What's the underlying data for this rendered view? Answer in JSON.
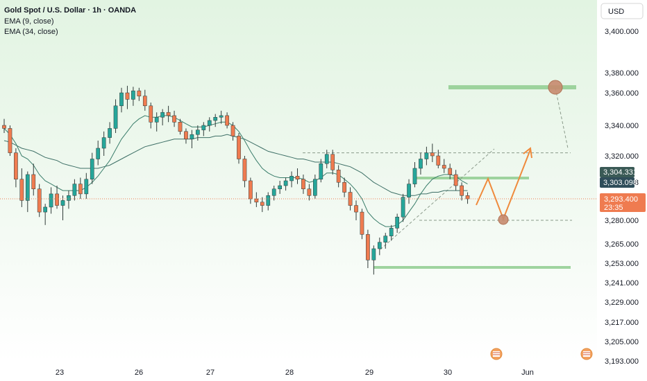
{
  "header": {
    "title": "Gold Spot / U.S. Dollar · 1h · OANDA",
    "indicators": [
      "EMA (9, close)",
      "EMA (34, close)"
    ],
    "currency": "USD"
  },
  "colors": {
    "up": "#26a69a",
    "down": "#ef7b50",
    "ema_fast": "#3a7d6b",
    "ema_slow": "#3d6f66",
    "zone": "#8fcc8f",
    "projection": "#ef8a3c",
    "bg_top": "#e6f6e6",
    "bg_bottom": "#ffffff"
  },
  "chart_data": {
    "type": "candlestick",
    "y_ticks": [
      "3,400.000",
      "3,380.000",
      "3,360.000",
      "3,340.000",
      "3,320.000",
      "3,303.098",
      "3,280.000",
      "3,265.000",
      "3,253.000",
      "3,241.000",
      "3,229.000",
      "3,217.000",
      "3,205.000",
      "3,193.000"
    ],
    "x_ticks": [
      "23",
      "26",
      "27",
      "28",
      "29",
      "30",
      "Jun"
    ],
    "price_badges": [
      {
        "label": "3,304.331",
        "value": 3304.331
      },
      {
        "label": "3,303.098",
        "value": 3303.098
      },
      {
        "label": "3,293.400",
        "value": 3293.4,
        "sub": "23:35"
      }
    ],
    "candles": [
      [
        3340,
        3344,
        3335,
        3338
      ],
      [
        3338,
        3340,
        3320,
        3322
      ],
      [
        3322,
        3325,
        3300,
        3305
      ],
      [
        3305,
        3312,
        3288,
        3292
      ],
      [
        3292,
        3310,
        3285,
        3308
      ],
      [
        3308,
        3315,
        3295,
        3299
      ],
      [
        3299,
        3302,
        3282,
        3285
      ],
      [
        3285,
        3290,
        3277,
        3288
      ],
      [
        3288,
        3300,
        3284,
        3296
      ],
      [
        3296,
        3301,
        3287,
        3289
      ],
      [
        3289,
        3295,
        3280,
        3292
      ],
      [
        3292,
        3298,
        3287,
        3295
      ],
      [
        3295,
        3305,
        3292,
        3302
      ],
      [
        3302,
        3306,
        3293,
        3296
      ],
      [
        3296,
        3309,
        3293,
        3305
      ],
      [
        3305,
        3322,
        3302,
        3318
      ],
      [
        3318,
        3330,
        3314,
        3325
      ],
      [
        3325,
        3336,
        3320,
        3332
      ],
      [
        3332,
        3342,
        3328,
        3338
      ],
      [
        3338,
        3356,
        3335,
        3352
      ],
      [
        3352,
        3365,
        3348,
        3360
      ],
      [
        3360,
        3367,
        3350,
        3356
      ],
      [
        3356,
        3366,
        3352,
        3362
      ],
      [
        3362,
        3365,
        3355,
        3358
      ],
      [
        3358,
        3363,
        3349,
        3352
      ],
      [
        3352,
        3354,
        3338,
        3342
      ],
      [
        3342,
        3348,
        3336,
        3345
      ],
      [
        3345,
        3350,
        3340,
        3348
      ],
      [
        3348,
        3352,
        3342,
        3346
      ],
      [
        3346,
        3349,
        3339,
        3342
      ],
      [
        3342,
        3344,
        3334,
        3336
      ],
      [
        3336,
        3338,
        3328,
        3331
      ],
      [
        3331,
        3337,
        3325,
        3334
      ],
      [
        3334,
        3340,
        3330,
        3337
      ],
      [
        3337,
        3342,
        3333,
        3340
      ],
      [
        3340,
        3345,
        3336,
        3343
      ],
      [
        3343,
        3347,
        3339,
        3345
      ],
      [
        3345,
        3349,
        3341,
        3346
      ],
      [
        3346,
        3348,
        3338,
        3340
      ],
      [
        3340,
        3342,
        3330,
        3333
      ],
      [
        3333,
        3335,
        3315,
        3318
      ],
      [
        3318,
        3320,
        3300,
        3304
      ],
      [
        3304,
        3306,
        3290,
        3293
      ],
      [
        3293,
        3297,
        3288,
        3291
      ],
      [
        3291,
        3294,
        3285,
        3289
      ],
      [
        3289,
        3297,
        3286,
        3295
      ],
      [
        3295,
        3301,
        3292,
        3299
      ],
      [
        3299,
        3304,
        3296,
        3301
      ],
      [
        3301,
        3306,
        3298,
        3304
      ],
      [
        3304,
        3310,
        3300,
        3307
      ],
      [
        3307,
        3312,
        3302,
        3305
      ],
      [
        3305,
        3308,
        3296,
        3299
      ],
      [
        3299,
        3302,
        3292,
        3295
      ],
      [
        3295,
        3308,
        3293,
        3305
      ],
      [
        3305,
        3318,
        3303,
        3315
      ],
      [
        3315,
        3324,
        3312,
        3321
      ],
      [
        3321,
        3324,
        3308,
        3311
      ],
      [
        3311,
        3314,
        3300,
        3303
      ],
      [
        3303,
        3306,
        3294,
        3297
      ],
      [
        3297,
        3300,
        3286,
        3289
      ],
      [
        3289,
        3292,
        3280,
        3285
      ],
      [
        3285,
        3287,
        3268,
        3271
      ],
      [
        3271,
        3274,
        3250,
        3255
      ],
      [
        3255,
        3264,
        3246,
        3262
      ],
      [
        3262,
        3269,
        3258,
        3266
      ],
      [
        3266,
        3272,
        3262,
        3270
      ],
      [
        3270,
        3277,
        3267,
        3275
      ],
      [
        3275,
        3284,
        3272,
        3282
      ],
      [
        3282,
        3296,
        3279,
        3294
      ],
      [
        3294,
        3305,
        3290,
        3302
      ],
      [
        3302,
        3316,
        3300,
        3312
      ],
      [
        3312,
        3322,
        3308,
        3318
      ],
      [
        3318,
        3326,
        3314,
        3322
      ],
      [
        3322,
        3328,
        3316,
        3320
      ],
      [
        3320,
        3324,
        3312,
        3314
      ],
      [
        3314,
        3318,
        3309,
        3312
      ],
      [
        3312,
        3315,
        3305,
        3308
      ],
      [
        3308,
        3311,
        3298,
        3301
      ],
      [
        3301,
        3303,
        3292,
        3295
      ],
      [
        3295,
        3297,
        3290,
        3293
      ]
    ],
    "ema_fast": [
      3338,
      3334,
      3328,
      3320,
      3318,
      3314,
      3308,
      3304,
      3302,
      3300,
      3298,
      3298,
      3298,
      3298,
      3300,
      3303,
      3307,
      3312,
      3317,
      3324,
      3331,
      3336,
      3341,
      3344,
      3346,
      3345,
      3345,
      3346,
      3346,
      3345,
      3343,
      3341,
      3339,
      3339,
      3339,
      3340,
      3341,
      3342,
      3342,
      3340,
      3336,
      3330,
      3323,
      3317,
      3312,
      3309,
      3307,
      3306,
      3306,
      3306,
      3306,
      3305,
      3303,
      3304,
      3306,
      3309,
      3309,
      3308,
      3305,
      3302,
      3298,
      3293,
      3285,
      3281,
      3278,
      3276,
      3276,
      3277,
      3280,
      3285,
      3290,
      3296,
      3301,
      3305,
      3307,
      3308,
      3308,
      3307,
      3304,
      3302
    ],
    "ema_slow": [
      3330,
      3329,
      3327,
      3325,
      3324,
      3323,
      3321,
      3319,
      3318,
      3317,
      3315,
      3314,
      3313,
      3312,
      3312,
      3312,
      3312,
      3313,
      3314,
      3316,
      3318,
      3320,
      3322,
      3324,
      3326,
      3327,
      3328,
      3329,
      3330,
      3331,
      3331,
      3331,
      3331,
      3332,
      3332,
      3332,
      3333,
      3333,
      3334,
      3333,
      3332,
      3331,
      3329,
      3327,
      3325,
      3323,
      3322,
      3321,
      3320,
      3319,
      3318,
      3318,
      3317,
      3316,
      3316,
      3316,
      3316,
      3315,
      3314,
      3313,
      3311,
      3309,
      3306,
      3303,
      3301,
      3299,
      3297,
      3296,
      3295,
      3295,
      3295,
      3296,
      3296,
      3297,
      3297,
      3298,
      3298,
      3298,
      3298,
      3298
    ],
    "zones": [
      {
        "y": 3362.5,
        "from": 3362,
        "to": 3363
      },
      {
        "y": 3302.5
      },
      {
        "y": 3251
      }
    ],
    "levels_dashed": [
      3322,
      3278
    ],
    "projection": [
      3297,
      3305,
      3278,
      3321
    ]
  }
}
